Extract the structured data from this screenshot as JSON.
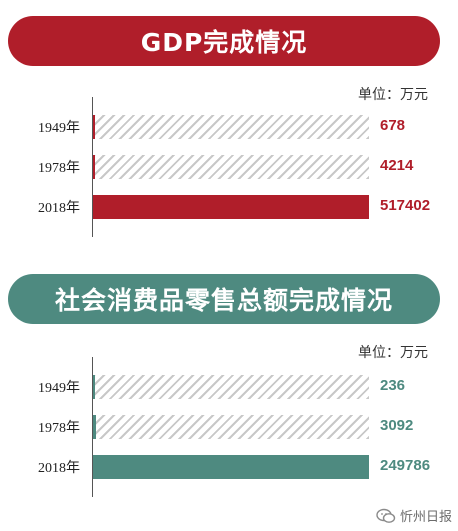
{
  "colors": {
    "gdp": "#b01e2a",
    "retail": "#4e8a80"
  },
  "chart_data": [
    {
      "type": "bar",
      "orientation": "horizontal",
      "title": "GDP完成情况",
      "unit": "单位：万元",
      "categories": [
        "1949年",
        "1978年",
        "2018年"
      ],
      "values": [
        678,
        4214,
        517402
      ],
      "value_labels": [
        "678",
        "4214",
        "517402"
      ],
      "xlim": [
        0,
        517402
      ]
    },
    {
      "type": "bar",
      "orientation": "horizontal",
      "title": "社会消费品零售总额完成情况",
      "unit": "单位：万元",
      "categories": [
        "1949年",
        "1978年",
        "2018年"
      ],
      "values": [
        236,
        3092,
        249786
      ],
      "value_labels": [
        "236",
        "3092",
        "249786"
      ],
      "xlim": [
        0,
        249786
      ]
    }
  ],
  "footer": {
    "icon": "wechat-icon",
    "source": "忻州日报"
  }
}
